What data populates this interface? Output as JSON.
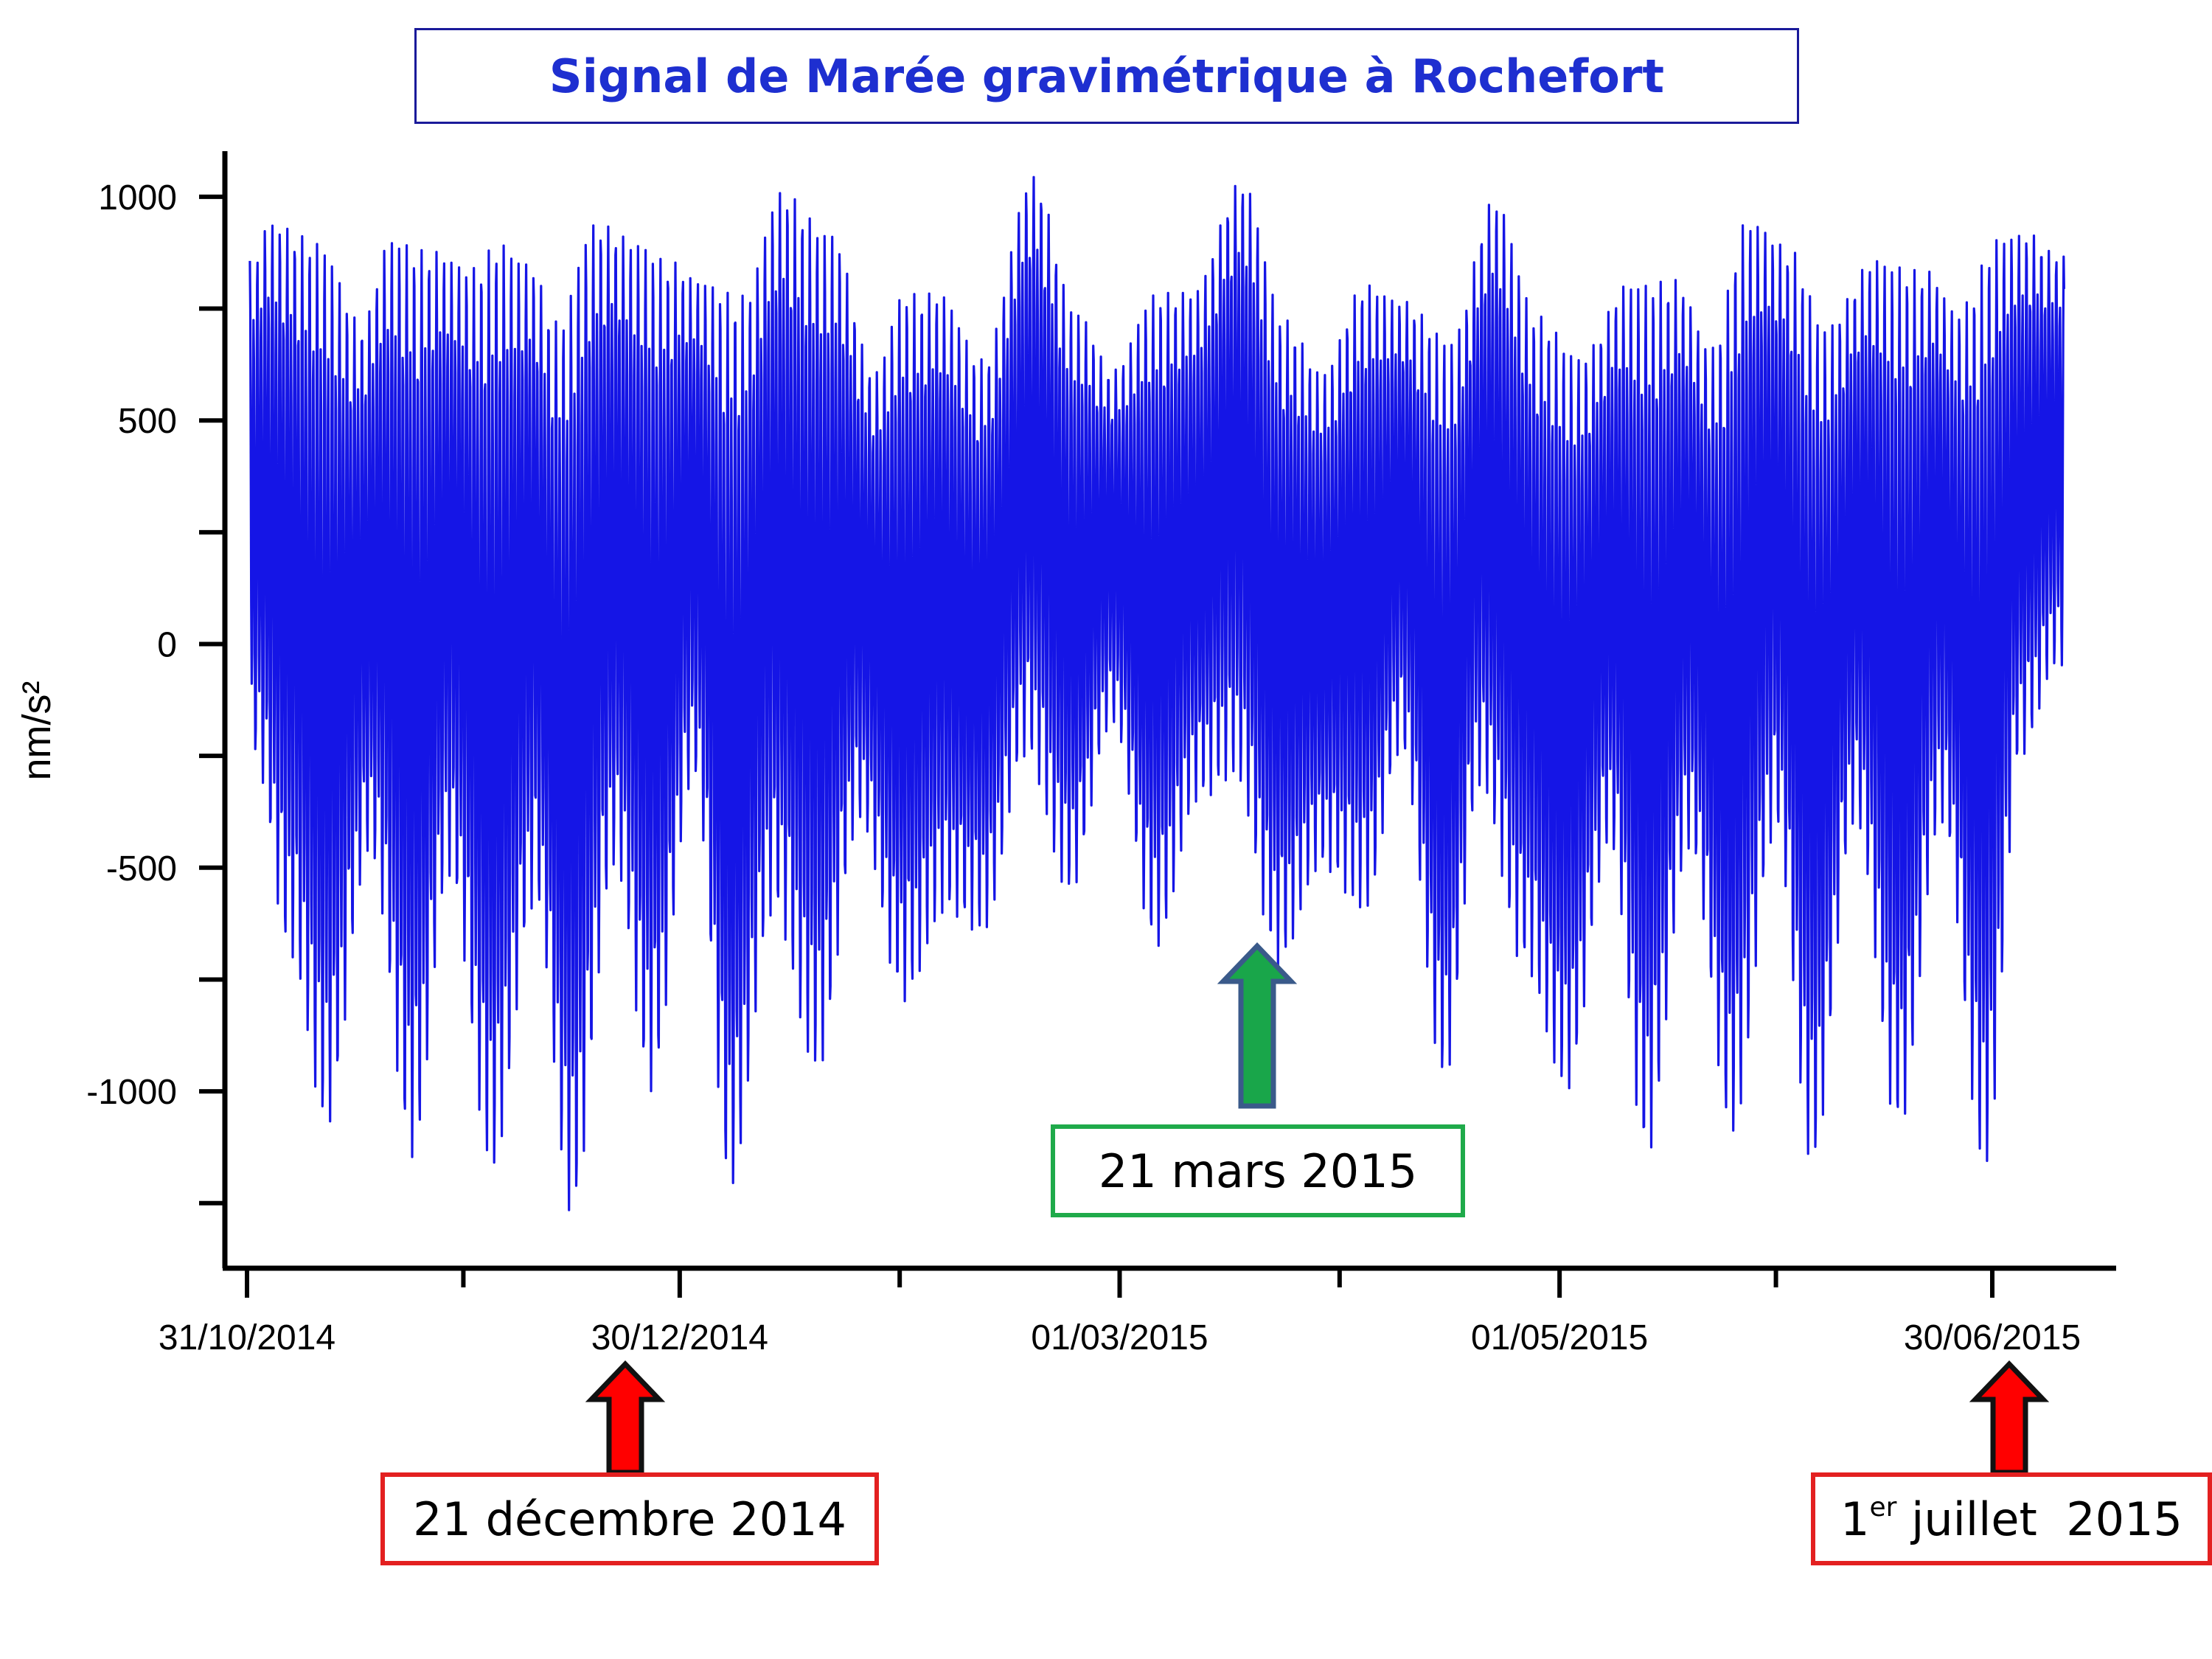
{
  "title": "Signal de Marée gravimétrique à Rochefort",
  "colors": {
    "signal": "#1515e6",
    "title": "#1e2fd0",
    "green_annotation": "#1faa4a",
    "green_arrow_fill": "#19a64a",
    "red_annotation": "#e32020",
    "red_arrow_fill": "#ff0000"
  },
  "annotations": {
    "equinox": {
      "label": "21 mars 2015",
      "date": "2015-03-21",
      "color": "green"
    },
    "winter_solstice": {
      "label": "21 décembre 2014",
      "date": "2014-12-21",
      "color": "red"
    },
    "summer_solstice": {
      "prefix": "1",
      "superscript": "er",
      "label": " juillet  2015",
      "date": "2015-07-01",
      "color": "red"
    }
  },
  "chart_data": {
    "type": "line",
    "title": "Signal de Marée gravimétrique à Rochefort",
    "xlabel": "",
    "ylabel": "nm/s²",
    "x_ticks": [
      "31/10/2014",
      "30/12/2014",
      "01/03/2015",
      "01/05/2015",
      "30/06/2015"
    ],
    "x_range": [
      "2014-10-31",
      "2015-07-11"
    ],
    "y_ticks": [
      1000,
      500,
      0,
      -500,
      -1000
    ],
    "ylim": [
      -1400,
      1100
    ],
    "grid": false,
    "series": [
      {
        "name": "",
        "description_of_envelope": "semi-diurnal tidal gravity oscillation",
        "upper_envelope": {
          "dates": [
            "2014-11-01",
            "2014-11-03",
            "2014-11-10",
            "2014-11-16",
            "2014-11-20",
            "2014-11-25",
            "2014-12-01",
            "2014-12-05",
            "2014-12-09",
            "2014-12-13",
            "2014-12-18",
            "2014-12-24",
            "2014-12-29",
            "2015-01-01",
            "2015-01-08",
            "2015-01-13",
            "2015-01-20",
            "2015-01-26",
            "2015-01-30",
            "2015-02-04",
            "2015-02-10",
            "2015-02-17",
            "2015-02-23",
            "2015-02-28",
            "2015-03-06",
            "2015-03-11",
            "2015-03-18",
            "2015-03-24",
            "2015-03-29",
            "2015-04-04",
            "2015-04-09",
            "2015-04-16",
            "2015-04-22",
            "2015-04-28",
            "2015-05-04",
            "2015-05-11",
            "2015-05-17",
            "2015-05-22",
            "2015-05-27",
            "2015-06-02",
            "2015-06-07",
            "2015-06-14",
            "2015-06-21",
            "2015-06-25",
            "2015-07-01",
            "2015-07-05",
            "2015-07-09"
          ],
          "values": [
            870,
            960,
            920,
            730,
            930,
            900,
            860,
            920,
            870,
            740,
            960,
            920,
            870,
            830,
            800,
            1030,
            940,
            620,
            800,
            800,
            650,
            1060,
            760,
            620,
            800,
            800,
            1050,
            740,
            620,
            820,
            780,
            700,
            1010,
            750,
            660,
            830,
            830,
            680,
            970,
            900,
            730,
            880,
            850,
            760,
            930,
            930,
            880
          ]
        },
        "lower_envelope": {
          "dates": [
            "2014-11-01",
            "2014-11-06",
            "2014-11-11",
            "2014-11-17",
            "2014-11-23",
            "2014-11-28",
            "2014-12-04",
            "2014-12-10",
            "2014-12-15",
            "2014-12-21",
            "2014-12-26",
            "2015-01-01",
            "2015-01-06",
            "2015-01-12",
            "2015-01-18",
            "2015-01-24",
            "2015-01-30",
            "2015-02-05",
            "2015-02-10",
            "2015-02-16",
            "2015-02-22",
            "2015-02-28",
            "2015-03-06",
            "2015-03-12",
            "2015-03-17",
            "2015-03-23",
            "2015-03-29",
            "2015-04-04",
            "2015-04-09",
            "2015-04-15",
            "2015-04-20",
            "2015-04-26",
            "2015-05-02",
            "2015-05-08",
            "2015-05-13",
            "2015-05-19",
            "2015-05-25",
            "2015-05-31",
            "2015-06-05",
            "2015-06-11",
            "2015-06-17",
            "2015-06-23",
            "2015-06-29",
            "2015-07-04",
            "2015-07-09"
          ],
          "values": [
            -250,
            -700,
            -1080,
            -470,
            -1150,
            -520,
            -1180,
            -580,
            -1280,
            -500,
            -1000,
            -300,
            -1220,
            -600,
            -960,
            -400,
            -800,
            -600,
            -650,
            -250,
            -560,
            -180,
            -680,
            -350,
            -300,
            -720,
            -500,
            -600,
            -240,
            -980,
            -320,
            -720,
            -1000,
            -450,
            -1150,
            -460,
            -1100,
            -420,
            -1170,
            -400,
            -1090,
            -400,
            -1180,
            -250,
            -50
          ]
        }
      }
    ]
  }
}
